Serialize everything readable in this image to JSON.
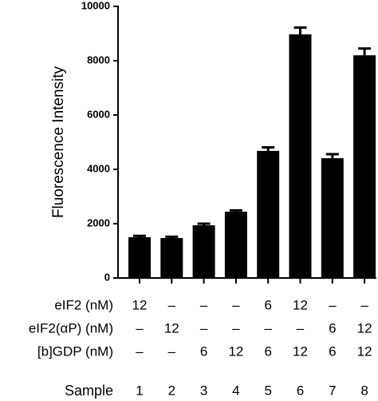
{
  "chart_data": {
    "type": "bar",
    "y_label": "Fluorescence Intensity",
    "x_label": "Sample",
    "categories": [
      "1",
      "2",
      "3",
      "4",
      "5",
      "6",
      "7",
      "8"
    ],
    "values": [
      1500,
      1470,
      1940,
      2440,
      4680,
      8970,
      4410,
      8200
    ],
    "errors": [
      50,
      50,
      60,
      50,
      130,
      250,
      150,
      250
    ],
    "color": "#000000",
    "ylim": [
      0,
      10000
    ],
    "yticks": [
      0,
      2000,
      4000,
      6000,
      8000,
      10000
    ],
    "table": {
      "rows": [
        {
          "label": "eIF2 (nM)",
          "cells": [
            "12",
            "–",
            "–",
            "–",
            "6",
            "12",
            "–",
            "–"
          ]
        },
        {
          "label": "eIF2(αP) (nM)",
          "cells": [
            "–",
            "12",
            "–",
            "–",
            "–",
            "–",
            "6",
            "12"
          ]
        },
        {
          "label": "[b]GDP (nM)",
          "cells": [
            "–",
            "–",
            "6",
            "12",
            "6",
            "12",
            "6",
            "12"
          ]
        }
      ]
    }
  }
}
